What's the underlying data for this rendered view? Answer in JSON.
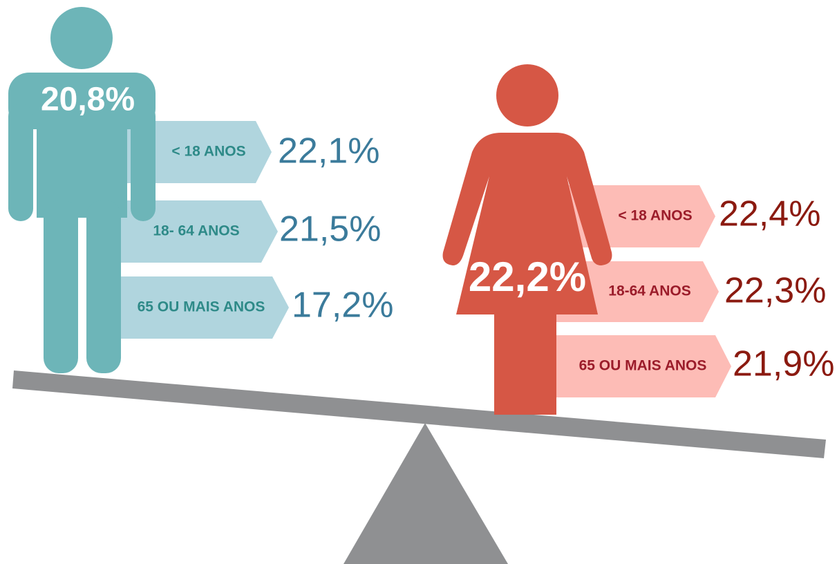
{
  "male": {
    "total": "20,8%",
    "groups": [
      {
        "label": "< 18 ANOS",
        "value": "22,1%"
      },
      {
        "label": "18- 64 ANOS",
        "value": "21,5%"
      },
      {
        "label": "65 OU MAIS ANOS",
        "value": "17,2%"
      }
    ]
  },
  "female": {
    "total": "22,2%",
    "groups": [
      {
        "label": "< 18 ANOS",
        "value": "22,4%"
      },
      {
        "label": "18-64 ANOS",
        "value": "22,3%"
      },
      {
        "label": "65 OU MAIS ANOS",
        "value": "21,9%"
      }
    ]
  }
}
